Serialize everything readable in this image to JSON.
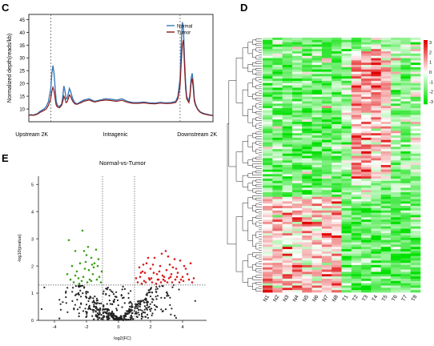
{
  "panels": {
    "c": {
      "letter": "C"
    },
    "d": {
      "letter": "D"
    },
    "e": {
      "letter": "E"
    }
  },
  "chart_data": [
    {
      "panel": "C",
      "type": "line",
      "ylabel": "Normalized depth(reads/kb)",
      "ylim": [
        5,
        47
      ],
      "yticks": [
        10,
        15,
        20,
        25,
        30,
        35,
        40,
        45
      ],
      "region_labels": [
        "Upstream 2K",
        "Intragenic",
        "Downstream 2K"
      ],
      "legend_position": "top-right",
      "x": [
        0,
        2,
        4,
        6,
        8,
        10,
        12,
        14,
        16,
        18,
        20,
        21,
        22,
        23,
        24,
        25,
        26,
        28,
        30,
        31,
        32,
        33,
        34,
        35,
        36,
        37,
        38,
        40,
        42,
        44,
        46,
        48,
        50,
        55,
        60,
        65,
        70,
        75,
        80,
        85,
        90,
        95,
        100,
        105,
        110,
        115,
        120,
        125,
        130,
        134,
        136,
        138,
        139,
        140,
        141,
        142,
        143,
        144,
        146,
        147,
        148,
        149,
        150,
        151,
        152,
        154,
        156,
        158,
        160,
        162,
        164,
        166,
        168
      ],
      "series": [
        {
          "name": "Normal",
          "color": "#3a78b8",
          "values": [
            7.5,
            7.8,
            7.6,
            7.9,
            8.2,
            9.0,
            9.5,
            10,
            11,
            13,
            18,
            24,
            27,
            24,
            18,
            13,
            11.5,
            11,
            12,
            15,
            19,
            17,
            14,
            14,
            16,
            18,
            17,
            14,
            12.5,
            12,
            12.5,
            13,
            13.5,
            14,
            13,
            13.5,
            14,
            13.8,
            13.5,
            14,
            13,
            12.5,
            12.5,
            12.7,
            12.4,
            12.3,
            12.6,
            12.4,
            12.5,
            13,
            15,
            22,
            35,
            44,
            42,
            30,
            20,
            15,
            13,
            16,
            22,
            24,
            20,
            14,
            12,
            10,
            9,
            8.5,
            8.2,
            8,
            7.8,
            7.6,
            7.5
          ]
        },
        {
          "name": "Tumor",
          "color": "#8b1a1a",
          "values": [
            7.5,
            7.6,
            7.5,
            7.7,
            8.0,
            8.6,
            9.0,
            9.5,
            10,
            11.5,
            14,
            17,
            18.5,
            17,
            14,
            11.5,
            10.8,
            10.5,
            11.5,
            13,
            15,
            14,
            12.5,
            12.8,
            14,
            15.5,
            15,
            13,
            12,
            11.8,
            12.2,
            12.5,
            13,
            13.5,
            12.7,
            13.2,
            13.5,
            13.3,
            13,
            13.4,
            12.6,
            12.2,
            12.2,
            12.4,
            12.1,
            12,
            12.3,
            12.1,
            12.2,
            12.6,
            14,
            19,
            28,
            35,
            37,
            27,
            18,
            14,
            12.5,
            15,
            20,
            22,
            18,
            13,
            11.5,
            9.8,
            8.8,
            8.3,
            8.0,
            7.8,
            7.6,
            7.5,
            7.4
          ]
        }
      ],
      "divider_positions_x": [
        20,
        138
      ]
    },
    {
      "panel": "D",
      "type": "heatmap",
      "columns": [
        "N1",
        "N2",
        "N3",
        "N4",
        "N5",
        "N6",
        "N7",
        "N8",
        "T1",
        "T2",
        "T3",
        "T4",
        "T5",
        "T6",
        "T7",
        "T8"
      ],
      "rows": 112,
      "color_scale": {
        "min": -3,
        "max": 3,
        "low": "#00e000",
        "mid": "#ffffff",
        "high": "#e00000"
      },
      "legend_ticks": [
        "3",
        "2",
        "1",
        "0",
        "-1",
        "-2",
        "-3"
      ]
    },
    {
      "panel": "E",
      "type": "scatter",
      "title": "Normal-vs-Tumor",
      "xlabel": "log2(FC)",
      "ylabel": "-log10(pvalue)",
      "xlim": [
        -5,
        5.5
      ],
      "ylim": [
        0,
        5.3
      ],
      "xticks": [
        -4,
        -2,
        0,
        2,
        4
      ],
      "yticks": [
        0,
        1,
        2,
        3,
        4,
        5
      ],
      "thresholds": {
        "x": [
          -1,
          1
        ],
        "y": 1.3
      },
      "colors": {
        "down": "#3da017",
        "up": "#d81e1e",
        "ns": "#222222"
      },
      "down_points": [
        [
          -3.1,
          2.95
        ],
        [
          -2.7,
          2.55
        ],
        [
          -2.25,
          3.3
        ],
        [
          -2.0,
          2.4
        ],
        [
          -1.9,
          2.7
        ],
        [
          -1.7,
          2.3
        ],
        [
          -1.4,
          2.6
        ],
        [
          -1.3,
          2.0
        ],
        [
          -2.9,
          2.0
        ],
        [
          -2.6,
          1.8
        ],
        [
          -2.4,
          2.1
        ],
        [
          -2.2,
          1.6
        ],
        [
          -2.1,
          1.9
        ],
        [
          -1.8,
          1.5
        ],
        [
          -1.6,
          1.7
        ],
        [
          -1.5,
          2.1
        ],
        [
          -1.2,
          1.6
        ],
        [
          -3.0,
          1.5
        ],
        [
          -2.8,
          1.4
        ],
        [
          -2.5,
          1.55
        ],
        [
          -2.3,
          1.45
        ],
        [
          -1.95,
          1.4
        ],
        [
          -1.7,
          1.45
        ],
        [
          -1.35,
          1.5
        ],
        [
          -1.1,
          1.4
        ],
        [
          -2.05,
          2.15
        ],
        [
          -1.85,
          1.85
        ],
        [
          -1.55,
          1.95
        ],
        [
          -2.7,
          1.65
        ],
        [
          -3.2,
          1.7
        ],
        [
          -1.25,
          2.25
        ],
        [
          -2.45,
          1.35
        ],
        [
          -1.05,
          1.8
        ],
        [
          -1.65,
          2.05
        ],
        [
          -2.15,
          2.55
        ]
      ],
      "up_points": [
        [
          1.2,
          1.4
        ],
        [
          1.35,
          1.6
        ],
        [
          1.5,
          1.8
        ],
        [
          1.6,
          1.45
        ],
        [
          1.75,
          2.1
        ],
        [
          1.9,
          1.55
        ],
        [
          2.0,
          1.9
        ],
        [
          2.1,
          1.4
        ],
        [
          2.25,
          2.3
        ],
        [
          2.4,
          1.7
        ],
        [
          2.5,
          1.5
        ],
        [
          2.6,
          2.0
        ],
        [
          2.75,
          1.65
        ],
        [
          2.9,
          1.45
        ],
        [
          3.0,
          1.85
        ],
        [
          3.1,
          2.35
        ],
        [
          3.25,
          1.6
        ],
        [
          3.4,
          1.95
        ],
        [
          3.55,
          1.5
        ],
        [
          3.7,
          1.75
        ],
        [
          3.85,
          2.2
        ],
        [
          4.0,
          1.6
        ],
        [
          4.2,
          1.9
        ],
        [
          4.4,
          1.5
        ],
        [
          1.3,
          1.95
        ],
        [
          1.45,
          1.35
        ],
        [
          1.65,
          1.75
        ],
        [
          1.85,
          2.3
        ],
        [
          2.05,
          1.55
        ],
        [
          2.2,
          1.75
        ],
        [
          2.35,
          1.35
        ],
        [
          2.55,
          1.8
        ],
        [
          2.7,
          2.45
        ],
        [
          2.85,
          1.6
        ],
        [
          3.05,
          1.4
        ],
        [
          3.2,
          2.05
        ],
        [
          3.35,
          1.4
        ],
        [
          3.5,
          2.25
        ],
        [
          3.65,
          1.6
        ],
        [
          3.8,
          1.4
        ],
        [
          4.1,
          2.0
        ],
        [
          4.3,
          1.7
        ],
        [
          4.5,
          2.1
        ],
        [
          4.7,
          1.55
        ],
        [
          1.1,
          1.55
        ],
        [
          1.55,
          2.05
        ],
        [
          2.95,
          2.55
        ],
        [
          3.6,
          1.9
        ],
        [
          4.05,
          1.45
        ],
        [
          2.45,
          1.5
        ],
        [
          1.95,
          1.5
        ],
        [
          1.4,
          1.75
        ],
        [
          2.8,
          1.5
        ],
        [
          3.3,
          1.7
        ],
        [
          3.9,
          1.5
        ],
        [
          2.15,
          2.05
        ],
        [
          2.65,
          1.4
        ],
        [
          1.7,
          1.4
        ],
        [
          3.15,
          1.55
        ],
        [
          4.6,
          1.4
        ]
      ],
      "ns_count": 460
    }
  ]
}
